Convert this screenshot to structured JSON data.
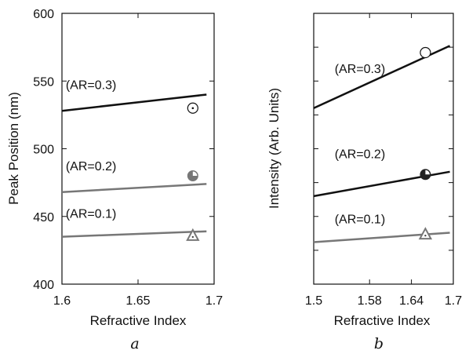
{
  "chart_data": [
    {
      "type": "line",
      "panel_label": "a",
      "xlabel": "Refractive Index",
      "ylabel": "Peak Position (nm)",
      "xlim": [
        1.6,
        1.7
      ],
      "ylim": [
        400,
        600
      ],
      "xticks": [
        1.6,
        1.65,
        1.7
      ],
      "xtick_labels": [
        "1.6",
        "1.65",
        "1.7"
      ],
      "yticks": [
        400,
        450,
        500,
        550,
        600
      ],
      "ytick_labels": [
        "400",
        "450",
        "500",
        "550",
        "600"
      ],
      "grid": false,
      "series": [
        {
          "name": "(AR=0.3)",
          "color": "#111111",
          "line": {
            "x": [
              1.6,
              1.695
            ],
            "y": [
              528,
              540
            ]
          },
          "point": {
            "x": 1.686,
            "y": 530,
            "marker": "circle-dot"
          }
        },
        {
          "name": "(AR=0.2)",
          "color": "#777777",
          "line": {
            "x": [
              1.6,
              1.695
            ],
            "y": [
              468,
              474
            ]
          },
          "point": {
            "x": 1.686,
            "y": 480,
            "marker": "circle-quarter"
          }
        },
        {
          "name": "(AR=0.1)",
          "color": "#777777",
          "line": {
            "x": [
              1.6,
              1.695
            ],
            "y": [
              435,
              439
            ]
          },
          "point": {
            "x": 1.686,
            "y": 436,
            "marker": "triangle-dot"
          }
        }
      ]
    },
    {
      "type": "line",
      "panel_label": "b",
      "xlabel": "Refractive Index",
      "ylabel": "Intensity (Arb. Units)",
      "xlim": [
        1.5,
        1.7
      ],
      "ylim": [
        0,
        1
      ],
      "xticks": [
        1.5,
        1.58,
        1.64,
        1.7
      ],
      "xtick_labels": [
        "1.5",
        "1.58",
        "1.64",
        "1.7"
      ],
      "yticks": [
        0.125,
        0.25,
        0.375,
        0.5,
        0.625,
        0.75,
        0.875
      ],
      "ytick_labels": [],
      "grid": false,
      "series": [
        {
          "name": "(AR=0.3)",
          "color": "#111111",
          "line": {
            "x": [
              1.5,
              1.695
            ],
            "y": [
              0.65,
              0.88
            ]
          },
          "point": {
            "x": 1.66,
            "y": 0.855,
            "marker": "circle-open"
          }
        },
        {
          "name": "(AR=0.2)",
          "color": "#111111",
          "line": {
            "x": [
              1.5,
              1.695
            ],
            "y": [
              0.325,
              0.415
            ]
          },
          "point": {
            "x": 1.66,
            "y": 0.405,
            "marker": "circle-quarter"
          }
        },
        {
          "name": "(AR=0.1)",
          "color": "#777777",
          "line": {
            "x": [
              1.5,
              1.695
            ],
            "y": [
              0.155,
              0.19
            ]
          },
          "point": {
            "x": 1.66,
            "y": 0.185,
            "marker": "triangle-dot"
          }
        }
      ]
    }
  ]
}
